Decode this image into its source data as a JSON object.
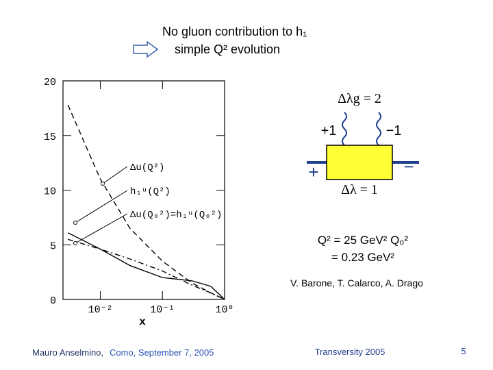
{
  "slide": {
    "title": "No gluon contribution to h₁",
    "subtitle": "simple Q² evolution",
    "diagram": {
      "helicity_g": "Δλg = 2",
      "left_photon": "+1",
      "right_photon": "−1",
      "left_quark": "+",
      "right_quark": "−",
      "helicity": "Δλ = 1"
    },
    "scale_line1": "Q² = 25 GeV² Q₀²",
    "scale_line2": "= 0.23 GeV²",
    "authors": "V. Barone, T. Calarco, A. Drago",
    "footer": {
      "speaker": "Mauro Anselmino,",
      "place": "Como, September 7, 2005",
      "event": "Transversity 2005",
      "page": "5"
    }
  },
  "chart_data": {
    "type": "line",
    "xlabel": "x",
    "log_x": true,
    "x": [
      0.003,
      0.01,
      0.03,
      0.1,
      0.3,
      0.6,
      1
    ],
    "xlim": [
      0.0025,
      1
    ],
    "xticks": [
      {
        "value": 0.01,
        "label": "10⁻²"
      },
      {
        "value": 0.1,
        "label": "10⁻¹"
      },
      {
        "value": 1,
        "label": "10⁰"
      }
    ],
    "ylim": [
      0,
      20
    ],
    "yticks": [
      0,
      5,
      10,
      15,
      20
    ],
    "series": [
      {
        "name": "Δu(Q²)",
        "color": "#000000",
        "dash": "dashed",
        "values": [
          17.8,
          11,
          6.5,
          3.5,
          1.5,
          0.6,
          0
        ]
      },
      {
        "name": "h₁ᵘ(Q²)",
        "color": "#000000",
        "dash": "dashdot",
        "values": [
          5.5,
          4.6,
          3.7,
          2.6,
          1.3,
          0.6,
          0
        ]
      },
      {
        "name": "Δu(Q₀²)=h₁ᵘ(Q₀²)",
        "color": "#000000",
        "dash": "solid",
        "values": [
          6.1,
          4.6,
          3.1,
          2.0,
          1.7,
          1.2,
          0
        ]
      }
    ]
  }
}
